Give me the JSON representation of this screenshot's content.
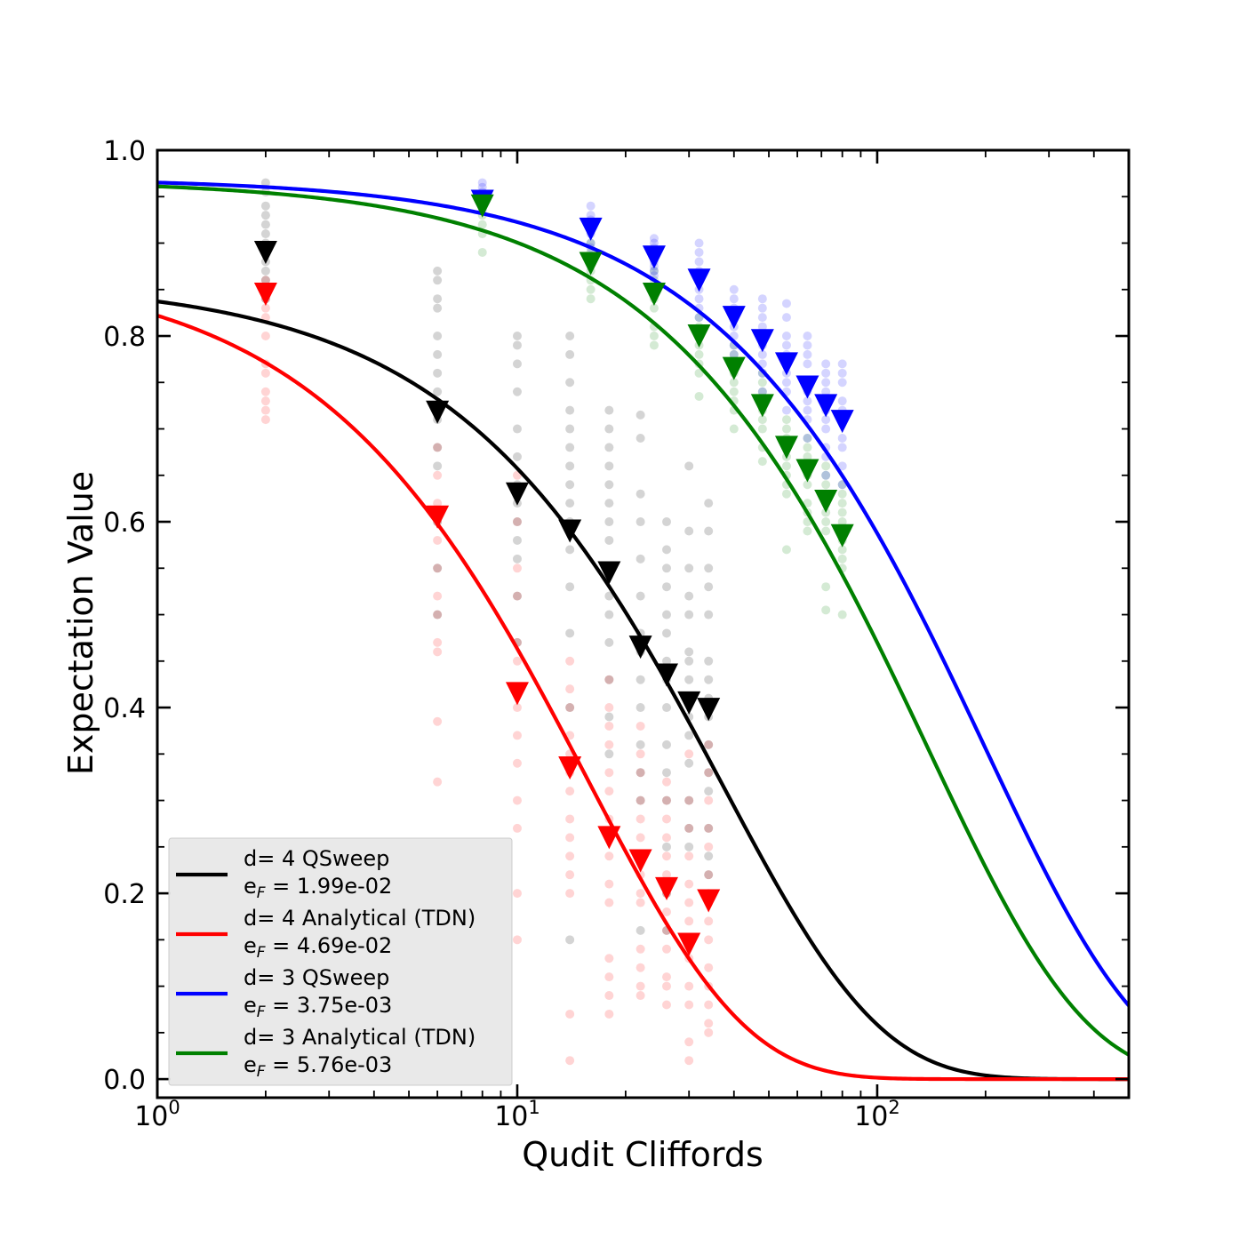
{
  "chart_data": {
    "type": "scatter",
    "title": "",
    "xlabel": "Qudit Cliffords",
    "ylabel": "Expectation Value",
    "xscale": "log",
    "xlim": [
      1,
      500
    ],
    "ylim": [
      -0.02,
      1.0
    ],
    "grid": false,
    "legend_position": "lower-left",
    "x_ticks": [
      {
        "value": 1,
        "base": "10",
        "exp": "0"
      },
      {
        "value": 10,
        "base": "10",
        "exp": "1"
      },
      {
        "value": 100,
        "base": "10",
        "exp": "2"
      }
    ],
    "y_ticks": [
      {
        "value": 0.0,
        "label": "0.0"
      },
      {
        "value": 0.2,
        "label": "0.2"
      },
      {
        "value": 0.4,
        "label": "0.4"
      },
      {
        "value": 0.6,
        "label": "0.6"
      },
      {
        "value": 0.8,
        "label": "0.8"
      },
      {
        "value": 1.0,
        "label": "1.0"
      }
    ],
    "series": [
      {
        "key": "d4_qsweep",
        "name": "d= 4 QSweep",
        "error_label": "1.99e-02",
        "color": "#000000",
        "fit": {
          "A": 0.86,
          "p": 0.9735,
          "B": 0.0
        },
        "means": {
          "x": [
            2,
            6,
            10,
            14,
            18,
            22,
            26,
            30,
            34
          ],
          "y": [
            0.89,
            0.718,
            0.63,
            0.59,
            0.545,
            0.465,
            0.435,
            0.405,
            0.398
          ]
        },
        "samples": {
          "x": [
            2,
            2,
            2,
            2,
            2,
            2,
            2,
            2,
            2,
            2,
            2,
            2,
            2,
            6,
            6,
            6,
            6,
            6,
            6,
            6,
            6,
            6,
            6,
            6,
            6,
            6,
            6,
            10,
            10,
            10,
            10,
            10,
            10,
            10,
            10,
            10,
            10,
            10,
            10,
            10,
            10,
            14,
            14,
            14,
            14,
            14,
            14,
            14,
            14,
            14,
            14,
            14,
            14,
            14,
            14,
            14,
            18,
            18,
            18,
            18,
            18,
            18,
            18,
            18,
            18,
            18,
            18,
            18,
            18,
            18,
            18,
            22,
            22,
            22,
            22,
            22,
            22,
            22,
            22,
            22,
            22,
            22,
            22,
            22,
            22,
            26,
            26,
            26,
            26,
            26,
            26,
            26,
            26,
            26,
            26,
            26,
            26,
            26,
            26,
            26,
            30,
            30,
            30,
            30,
            30,
            30,
            30,
            30,
            30,
            30,
            30,
            30,
            30,
            30,
            30,
            34,
            34,
            34,
            34,
            34,
            34,
            34,
            34,
            34,
            34,
            34,
            34,
            34,
            34,
            34
          ],
          "y": [
            0.965,
            0.955,
            0.94,
            0.93,
            0.92,
            0.91,
            0.9,
            0.89,
            0.88,
            0.87,
            0.86,
            0.85,
            0.84,
            0.87,
            0.86,
            0.84,
            0.83,
            0.8,
            0.78,
            0.76,
            0.74,
            0.71,
            0.68,
            0.66,
            0.6,
            0.55,
            0.5,
            0.8,
            0.79,
            0.77,
            0.74,
            0.7,
            0.67,
            0.64,
            0.62,
            0.6,
            0.58,
            0.56,
            0.52,
            0.47,
            0.42,
            0.8,
            0.78,
            0.75,
            0.72,
            0.7,
            0.68,
            0.66,
            0.64,
            0.62,
            0.6,
            0.57,
            0.53,
            0.48,
            0.4,
            0.15,
            0.72,
            0.7,
            0.68,
            0.66,
            0.64,
            0.62,
            0.6,
            0.58,
            0.55,
            0.52,
            0.5,
            0.47,
            0.43,
            0.39,
            0.35,
            0.715,
            0.69,
            0.63,
            0.6,
            0.56,
            0.52,
            0.48,
            0.46,
            0.43,
            0.4,
            0.36,
            0.33,
            0.3,
            0.16,
            0.6,
            0.57,
            0.55,
            0.53,
            0.5,
            0.48,
            0.45,
            0.43,
            0.4,
            0.36,
            0.33,
            0.3,
            0.25,
            0.2,
            0.16,
            0.66,
            0.59,
            0.55,
            0.52,
            0.5,
            0.46,
            0.45,
            0.43,
            0.41,
            0.39,
            0.37,
            0.34,
            0.3,
            0.27,
            0.25,
            0.62,
            0.59,
            0.55,
            0.53,
            0.5,
            0.45,
            0.43,
            0.41,
            0.39,
            0.36,
            0.33,
            0.31,
            0.27,
            0.24,
            0.22
          ]
        }
      },
      {
        "key": "d4_analytical",
        "name": "d= 4 Analytical (TDN)",
        "error_label": "4.69e-02",
        "color": "#ff0000",
        "fit": {
          "A": 0.876,
          "p": 0.9383,
          "B": 0.0
        },
        "means": {
          "x": [
            2,
            6,
            10,
            14,
            18,
            22,
            26,
            30,
            34
          ],
          "y": [
            0.845,
            0.605,
            0.415,
            0.335,
            0.26,
            0.235,
            0.205,
            0.145,
            0.192
          ]
        },
        "samples": {
          "x": [
            2,
            2,
            2,
            2,
            2,
            2,
            2,
            2,
            2,
            2,
            2,
            6,
            6,
            6,
            6,
            6,
            6,
            6,
            6,
            6,
            6,
            6,
            6,
            10,
            10,
            10,
            10,
            10,
            10,
            10,
            10,
            10,
            10,
            10,
            10,
            10,
            10,
            14,
            14,
            14,
            14,
            14,
            14,
            14,
            14,
            14,
            14,
            14,
            14,
            14,
            14,
            18,
            18,
            18,
            18,
            18,
            18,
            18,
            18,
            18,
            18,
            18,
            18,
            18,
            18,
            18,
            22,
            22,
            22,
            22,
            22,
            22,
            22,
            22,
            22,
            22,
            22,
            22,
            22,
            22,
            26,
            26,
            26,
            26,
            26,
            26,
            26,
            26,
            26,
            26,
            26,
            26,
            26,
            30,
            30,
            30,
            30,
            30,
            30,
            30,
            30,
            30,
            30,
            30,
            30,
            30,
            34,
            34,
            34,
            34,
            34,
            34,
            34,
            34,
            34,
            34,
            34,
            34,
            34,
            34
          ],
          "y": [
            0.86,
            0.84,
            0.83,
            0.82,
            0.8,
            0.77,
            0.76,
            0.74,
            0.73,
            0.72,
            0.71,
            0.68,
            0.65,
            0.62,
            0.6,
            0.58,
            0.55,
            0.52,
            0.5,
            0.47,
            0.46,
            0.385,
            0.32,
            0.65,
            0.6,
            0.55,
            0.52,
            0.47,
            0.45,
            0.42,
            0.4,
            0.37,
            0.34,
            0.3,
            0.27,
            0.2,
            0.15,
            0.45,
            0.42,
            0.4,
            0.37,
            0.35,
            0.33,
            0.31,
            0.28,
            0.26,
            0.24,
            0.22,
            0.2,
            0.07,
            0.02,
            0.43,
            0.4,
            0.38,
            0.36,
            0.33,
            0.31,
            0.28,
            0.26,
            0.24,
            0.21,
            0.19,
            0.13,
            0.11,
            0.09,
            0.07,
            0.38,
            0.35,
            0.33,
            0.3,
            0.28,
            0.26,
            0.24,
            0.22,
            0.2,
            0.19,
            0.14,
            0.12,
            0.1,
            0.09,
            0.32,
            0.3,
            0.28,
            0.26,
            0.24,
            0.22,
            0.2,
            0.18,
            0.16,
            0.14,
            0.11,
            0.1,
            0.08,
            0.35,
            0.3,
            0.27,
            0.24,
            0.21,
            0.19,
            0.17,
            0.15,
            0.13,
            0.1,
            0.08,
            0.04,
            0.02,
            0.36,
            0.33,
            0.3,
            0.27,
            0.25,
            0.22,
            0.2,
            0.17,
            0.15,
            0.12,
            0.1,
            0.08,
            0.06,
            0.05
          ]
        }
      },
      {
        "key": "d3_qsweep",
        "name": "d= 3 QSweep",
        "error_label": "3.75e-03",
        "color": "#0000ff",
        "fit": {
          "A": 0.97,
          "p": 0.995,
          "B": 0.0
        },
        "means": {
          "x": [
            8,
            16,
            24,
            32,
            40,
            48,
            56,
            64,
            72,
            80
          ],
          "y": [
            0.945,
            0.915,
            0.885,
            0.86,
            0.82,
            0.795,
            0.77,
            0.745,
            0.725,
            0.708
          ]
        },
        "samples": {
          "x": [
            8,
            8,
            8,
            8,
            8,
            8,
            16,
            16,
            16,
            16,
            16,
            16,
            16,
            24,
            24,
            24,
            24,
            24,
            24,
            24,
            24,
            32,
            32,
            32,
            32,
            32,
            32,
            32,
            32,
            32,
            40,
            40,
            40,
            40,
            40,
            40,
            40,
            40,
            40,
            48,
            48,
            48,
            48,
            48,
            48,
            48,
            48,
            48,
            48,
            56,
            56,
            56,
            56,
            56,
            56,
            56,
            56,
            56,
            56,
            64,
            64,
            64,
            64,
            64,
            64,
            64,
            64,
            64,
            64,
            72,
            72,
            72,
            72,
            72,
            72,
            72,
            72,
            72,
            72,
            80,
            80,
            80,
            80,
            80,
            80,
            80,
            80,
            80,
            80
          ],
          "y": [
            0.965,
            0.96,
            0.955,
            0.95,
            0.94,
            0.935,
            0.94,
            0.93,
            0.925,
            0.92,
            0.91,
            0.9,
            0.895,
            0.905,
            0.9,
            0.895,
            0.89,
            0.88,
            0.875,
            0.87,
            0.865,
            0.9,
            0.89,
            0.88,
            0.87,
            0.86,
            0.85,
            0.84,
            0.83,
            0.82,
            0.85,
            0.84,
            0.83,
            0.82,
            0.81,
            0.8,
            0.79,
            0.78,
            0.77,
            0.84,
            0.83,
            0.82,
            0.81,
            0.8,
            0.79,
            0.78,
            0.77,
            0.76,
            0.74,
            0.835,
            0.82,
            0.8,
            0.79,
            0.78,
            0.77,
            0.76,
            0.75,
            0.74,
            0.72,
            0.8,
            0.79,
            0.78,
            0.77,
            0.75,
            0.74,
            0.73,
            0.72,
            0.71,
            0.69,
            0.77,
            0.76,
            0.75,
            0.74,
            0.72,
            0.71,
            0.7,
            0.68,
            0.67,
            0.65,
            0.77,
            0.76,
            0.75,
            0.73,
            0.72,
            0.71,
            0.69,
            0.68,
            0.66,
            0.64
          ]
        }
      },
      {
        "key": "d3_analytical",
        "name": "d= 3 Analytical (TDN)",
        "error_label": "5.76e-03",
        "color": "#008000",
        "fit": {
          "A": 0.968,
          "p": 0.9928,
          "B": 0.0
        },
        "means": {
          "x": [
            8,
            16,
            24,
            32,
            40,
            48,
            56,
            64,
            72,
            80
          ],
          "y": [
            0.94,
            0.878,
            0.845,
            0.8,
            0.765,
            0.725,
            0.68,
            0.655,
            0.622,
            0.585
          ]
        },
        "samples": {
          "x": [
            8,
            8,
            8,
            8,
            8,
            8,
            16,
            16,
            16,
            16,
            16,
            16,
            16,
            24,
            24,
            24,
            24,
            24,
            24,
            24,
            24,
            32,
            32,
            32,
            32,
            32,
            32,
            32,
            32,
            40,
            40,
            40,
            40,
            40,
            40,
            40,
            40,
            40,
            48,
            48,
            48,
            48,
            48,
            48,
            48,
            48,
            48,
            56,
            56,
            56,
            56,
            56,
            56,
            56,
            56,
            56,
            56,
            64,
            64,
            64,
            64,
            64,
            64,
            64,
            64,
            64,
            64,
            72,
            72,
            72,
            72,
            72,
            72,
            72,
            72,
            72,
            72,
            80,
            80,
            80,
            80,
            80,
            80,
            80,
            80,
            80,
            80,
            80
          ],
          "y": [
            0.95,
            0.94,
            0.93,
            0.92,
            0.91,
            0.89,
            0.9,
            0.89,
            0.88,
            0.87,
            0.86,
            0.85,
            0.84,
            0.87,
            0.86,
            0.85,
            0.84,
            0.83,
            0.81,
            0.8,
            0.79,
            0.82,
            0.81,
            0.8,
            0.79,
            0.78,
            0.77,
            0.76,
            0.735,
            0.79,
            0.78,
            0.77,
            0.76,
            0.75,
            0.74,
            0.73,
            0.72,
            0.7,
            0.76,
            0.75,
            0.74,
            0.73,
            0.72,
            0.71,
            0.7,
            0.68,
            0.665,
            0.71,
            0.7,
            0.69,
            0.68,
            0.67,
            0.66,
            0.65,
            0.64,
            0.63,
            0.57,
            0.69,
            0.68,
            0.67,
            0.66,
            0.65,
            0.64,
            0.62,
            0.61,
            0.6,
            0.59,
            0.66,
            0.65,
            0.64,
            0.63,
            0.62,
            0.61,
            0.6,
            0.59,
            0.53,
            0.505,
            0.64,
            0.63,
            0.62,
            0.61,
            0.6,
            0.59,
            0.58,
            0.57,
            0.56,
            0.55,
            0.5
          ]
        }
      }
    ],
    "legend": [
      {
        "line1": "d= 4 QSweep",
        "line2_prefix": "e",
        "line2_sub": "F",
        "line2_value": " = 1.99e-02",
        "color": "#000000"
      },
      {
        "line1": "d= 4 Analytical (TDN)",
        "line2_prefix": "e",
        "line2_sub": "F",
        "line2_value": " = 4.69e-02",
        "color": "#ff0000"
      },
      {
        "line1": "d= 3 QSweep",
        "line2_prefix": "e",
        "line2_sub": "F",
        "line2_value": " = 3.75e-03",
        "color": "#0000ff"
      },
      {
        "line1": "d= 3 Analytical (TDN)",
        "line2_prefix": "e",
        "line2_sub": "F",
        "line2_value": " = 5.76e-03",
        "color": "#008000"
      }
    ]
  }
}
